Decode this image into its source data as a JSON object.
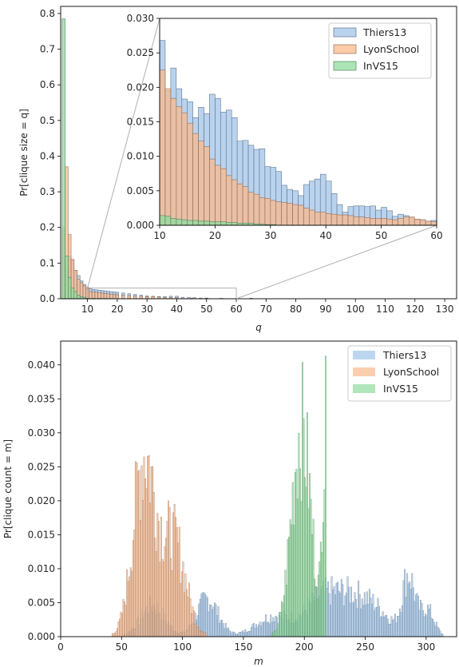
{
  "chart_data": [
    {
      "type": "bar",
      "panel": "top",
      "xlabel": "q",
      "ylabel": "Pr[clique size = q]",
      "xlim": [
        1,
        134
      ],
      "ylim": [
        0,
        0.82
      ],
      "xticks": [
        10,
        20,
        30,
        40,
        50,
        60,
        70,
        80,
        90,
        100,
        110,
        120,
        130
      ],
      "yticks": [
        0.0,
        0.1,
        0.2,
        0.3,
        0.4,
        0.5,
        0.6,
        0.7,
        0.8
      ],
      "legend": "none",
      "series": [
        {
          "name": "Thiers13",
          "color": "#a1c4ea",
          "x": [
            2,
            3,
            4,
            5,
            6,
            7,
            8,
            9,
            10,
            11,
            12,
            13,
            14,
            15,
            16,
            17,
            18,
            19,
            20,
            22,
            24,
            26,
            28,
            30,
            32,
            34,
            36,
            38,
            40,
            42,
            44,
            46,
            48,
            50,
            55,
            60,
            65
          ],
          "values": [
            0.19,
            0.08,
            0.12,
            0.11,
            0.08,
            0.065,
            0.05,
            0.04,
            0.032,
            0.028,
            0.026,
            0.025,
            0.024,
            0.023,
            0.022,
            0.021,
            0.02,
            0.019,
            0.018,
            0.016,
            0.014,
            0.012,
            0.01,
            0.008,
            0.007,
            0.006,
            0.006,
            0.007,
            0.007,
            0.004,
            0.003,
            0.003,
            0.002,
            0.002,
            0.001,
            0.0005,
            0.0015
          ]
        },
        {
          "name": "LyonSchool",
          "color": "#f9b98d",
          "x": [
            2,
            3,
            4,
            5,
            6,
            7,
            8,
            9,
            10,
            11,
            12,
            13,
            14,
            15,
            16,
            17,
            18,
            19,
            20,
            22,
            24,
            26,
            28,
            30,
            32,
            34,
            36,
            38,
            40,
            45,
            50,
            55,
            60
          ],
          "values": [
            0.2,
            0.37,
            0.18,
            0.11,
            0.08,
            0.055,
            0.045,
            0.036,
            0.028,
            0.02,
            0.019,
            0.018,
            0.017,
            0.016,
            0.015,
            0.014,
            0.013,
            0.012,
            0.011,
            0.01,
            0.009,
            0.008,
            0.007,
            0.006,
            0.006,
            0.005,
            0.004,
            0.003,
            0.003,
            0.002,
            0.001,
            0.001,
            0.0005
          ]
        },
        {
          "name": "InVS15",
          "color": "#8fdc9d",
          "x": [
            2,
            3,
            4,
            5,
            6,
            7,
            8,
            9,
            10,
            12,
            14,
            16,
            18,
            20,
            25,
            30
          ],
          "values": [
            0.785,
            0.12,
            0.06,
            0.03,
            0.02,
            0.01,
            0.006,
            0.004,
            0.0015,
            0.0012,
            0.001,
            0.0008,
            0.0006,
            0.0004,
            0.0003,
            0.0001
          ]
        }
      ]
    },
    {
      "type": "bar",
      "panel": "inset",
      "xlim": [
        10,
        60
      ],
      "ylim": [
        0,
        0.03
      ],
      "xticks": [
        10,
        20,
        30,
        40,
        50,
        60
      ],
      "yticks": [
        0.0,
        0.005,
        0.01,
        0.015,
        0.02,
        0.025,
        0.03
      ],
      "tick_labels_y": [
        "0.000",
        "0.005",
        "0.010",
        "0.015",
        "0.020",
        "0.025",
        "0.030"
      ],
      "legend": "top-right",
      "legend_entries": [
        "Thiers13",
        "LyonSchool",
        "InVS15"
      ],
      "series": [
        {
          "name": "Thiers13",
          "color": "#a1c4ea",
          "x": [
            10,
            11,
            12,
            13,
            14,
            15,
            16,
            17,
            18,
            19,
            20,
            21,
            22,
            23,
            24,
            25,
            26,
            27,
            28,
            29,
            30,
            31,
            32,
            33,
            34,
            35,
            36,
            37,
            38,
            39,
            40,
            41,
            42,
            43,
            44,
            45,
            46,
            47,
            48,
            49,
            50,
            51,
            52,
            53,
            54,
            55,
            56,
            57,
            58,
            59
          ],
          "values": [
            0.0268,
            0.0195,
            0.0228,
            0.0198,
            0.0183,
            0.0179,
            0.0156,
            0.0171,
            0.0162,
            0.019,
            0.0184,
            0.0164,
            0.0167,
            0.0156,
            0.0122,
            0.0123,
            0.0116,
            0.011,
            0.0111,
            0.0085,
            0.0084,
            0.0078,
            0.0058,
            0.0052,
            0.005,
            0.0043,
            0.0059,
            0.0064,
            0.0067,
            0.0074,
            0.0064,
            0.0046,
            0.003,
            0.0019,
            0.0027,
            0.0028,
            0.0028,
            0.0027,
            0.0028,
            0.0022,
            0.0026,
            0.0021,
            0.0013,
            0.0016,
            0.0014,
            0.0011,
            0.0008,
            0.0008,
            0.0005,
            0.0007
          ]
        },
        {
          "name": "LyonSchool",
          "color": "#f9b98d",
          "x": [
            10,
            11,
            12,
            13,
            14,
            15,
            16,
            17,
            18,
            19,
            20,
            21,
            22,
            23,
            24,
            25,
            26,
            27,
            28,
            29,
            30,
            31,
            32,
            33,
            34,
            35,
            36,
            37,
            38,
            39,
            40,
            41,
            42,
            43,
            44,
            45,
            46,
            47,
            48,
            49,
            50,
            51,
            52,
            53,
            54,
            55,
            56,
            57,
            58,
            59
          ],
          "values": [
            0.0225,
            0.0198,
            0.0184,
            0.0172,
            0.0163,
            0.0148,
            0.0133,
            0.0122,
            0.0114,
            0.0096,
            0.0087,
            0.0082,
            0.0072,
            0.0066,
            0.006,
            0.0056,
            0.0048,
            0.0045,
            0.004,
            0.0039,
            0.0036,
            0.0034,
            0.0033,
            0.0032,
            0.003,
            0.0029,
            0.0025,
            0.0022,
            0.0019,
            0.0019,
            0.0017,
            0.0016,
            0.0015,
            0.0015,
            0.0014,
            0.0012,
            0.0012,
            0.0011,
            0.001,
            0.001,
            0.001,
            0.0009,
            0.0008,
            0.001,
            0.0012,
            0.0012,
            0.0009,
            0.0008,
            0.0006,
            0.0005
          ]
        },
        {
          "name": "InVS15",
          "color": "#8fdc9d",
          "x": [
            10,
            11,
            12,
            13,
            14,
            15,
            16,
            17,
            18,
            19,
            20,
            21,
            22,
            23,
            24,
            25,
            26,
            27,
            28,
            29,
            30
          ],
          "values": [
            0.0014,
            0.0013,
            0.001,
            0.0009,
            0.0008,
            0.0007,
            0.0007,
            0.0006,
            0.0006,
            0.0005,
            0.0005,
            0.0005,
            0.0004,
            0.0004,
            0.0003,
            0.0003,
            0.0003,
            0.0002,
            0.0002,
            0.0001,
            0.0001
          ]
        }
      ]
    },
    {
      "type": "bar",
      "panel": "bottom",
      "xlabel": "m",
      "ylabel": "Pr[clique count = m]",
      "xlim": [
        0,
        325
      ],
      "ylim": [
        0,
        0.0435
      ],
      "xticks": [
        0,
        50,
        100,
        150,
        200,
        250,
        300
      ],
      "yticks": [
        0.0,
        0.005,
        0.01,
        0.015,
        0.02,
        0.025,
        0.03,
        0.035,
        0.04
      ],
      "tick_labels_y": [
        "0.000",
        "0.005",
        "0.010",
        "0.015",
        "0.020",
        "0.025",
        "0.030",
        "0.035",
        "0.040"
      ],
      "legend": "top-right",
      "legend_entries": [
        "Thiers13",
        "LyonSchool",
        "InVS15"
      ],
      "series": [
        {
          "name": "Thiers13",
          "color": "#a1c4ea",
          "peaks": [
            [
              75,
              10,
              0.0045
            ],
            [
              120,
              9,
              0.0055
            ],
            [
              175,
              15,
              0.003
            ],
            [
              210,
              12,
              0.0035
            ],
            [
              230,
              15,
              0.0048
            ],
            [
              255,
              15,
              0.004
            ],
            [
              285,
              5,
              0.0085
            ],
            [
              300,
              6,
              0.004
            ]
          ],
          "range": [
            40,
            320
          ]
        },
        {
          "name": "LyonSchool",
          "color": "#f9b98d",
          "peaks": [
            [
              68,
              9,
              0.026
            ],
            [
              92,
              10,
              0.014
            ]
          ],
          "range": [
            35,
            135
          ]
        },
        {
          "name": "InVS15",
          "color": "#8fdc9d",
          "peaks": [
            [
              197,
              8,
              0.0305
            ],
            [
              216,
              2,
              0.026
            ]
          ],
          "range": [
            135,
            220
          ]
        }
      ]
    }
  ]
}
